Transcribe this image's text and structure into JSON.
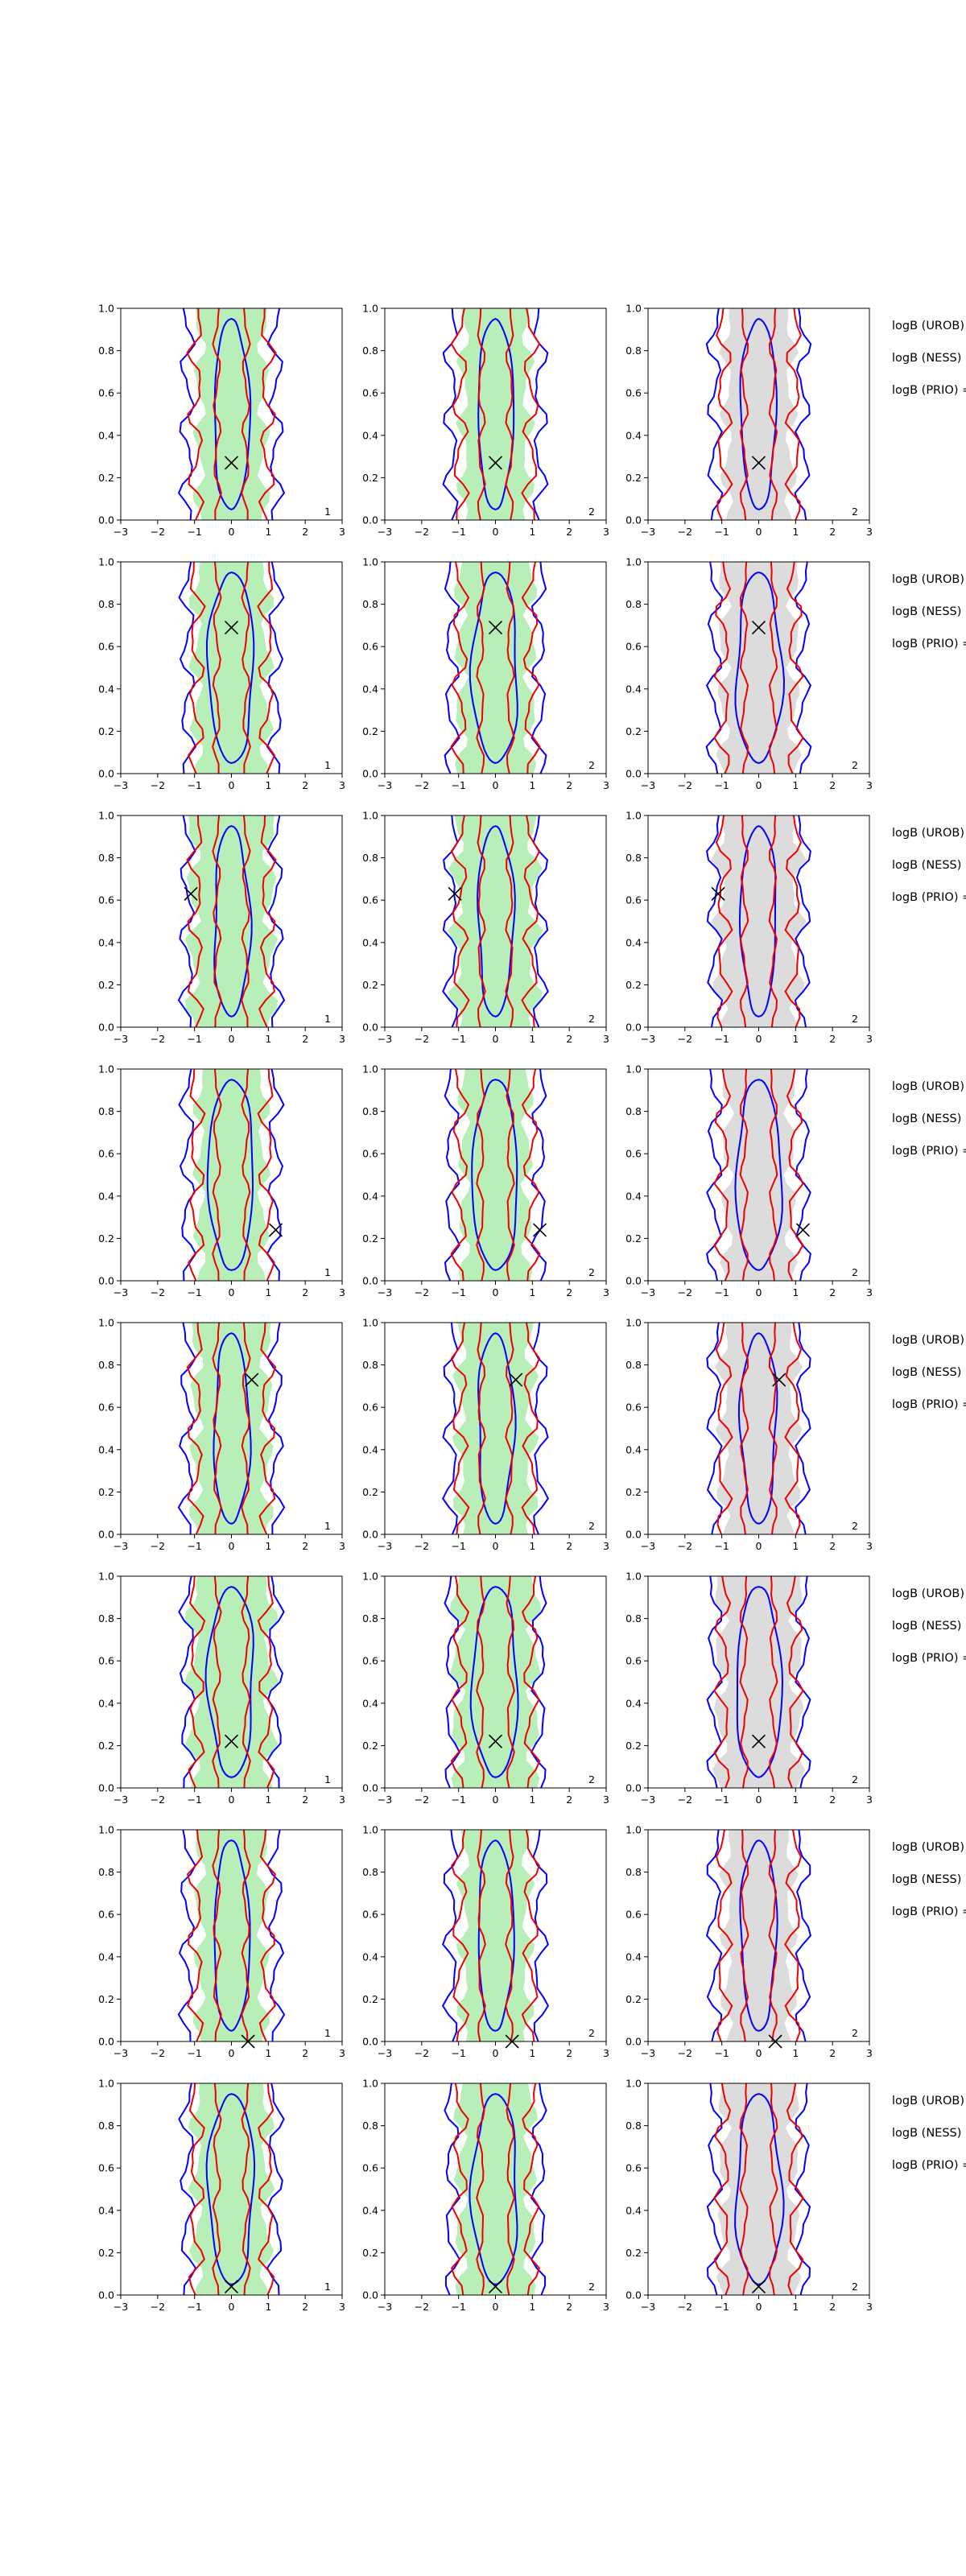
{
  "figure": {
    "side_labels": [
      "logB (UROB) =",
      "logB (NESS) =",
      "logB (PRIO) ="
    ]
  },
  "colors": {
    "background": "#ffffff",
    "filled_region_green": "#b8eeb8",
    "filled_region_gray": "#dcdcdc",
    "contour_blue": "#0000ff",
    "contour_red": "#ee0000",
    "marker": "#000000"
  },
  "chart_data": {
    "type": "contour-grid",
    "rows": 8,
    "columns": 3,
    "xlim": [
      -3,
      3
    ],
    "ylim": [
      0,
      1
    ],
    "xticks": [
      "−3",
      "−2",
      "−1",
      "0",
      "1",
      "2",
      "3"
    ],
    "yticks": [
      "0.0",
      "0.2",
      "0.4",
      "0.6",
      "0.8",
      "1.0"
    ],
    "panel_labels": [
      "1",
      "2",
      "2"
    ],
    "column_fill": [
      "green",
      "green",
      "gray"
    ],
    "markers": [
      {
        "row": 1,
        "x": 0.0,
        "y": 0.27
      },
      {
        "row": 2,
        "x": 0.0,
        "y": 0.69
      },
      {
        "row": 3,
        "x": -1.1,
        "y": 0.63
      },
      {
        "row": 4,
        "x": 1.2,
        "y": 0.24
      },
      {
        "row": 5,
        "x": 0.55,
        "y": 0.73
      },
      {
        "row": 6,
        "x": 0.0,
        "y": 0.22
      },
      {
        "row": 7,
        "x": 0.45,
        "y": 0.0
      },
      {
        "row": 8,
        "x": 0.0,
        "y": 0.04
      }
    ]
  }
}
